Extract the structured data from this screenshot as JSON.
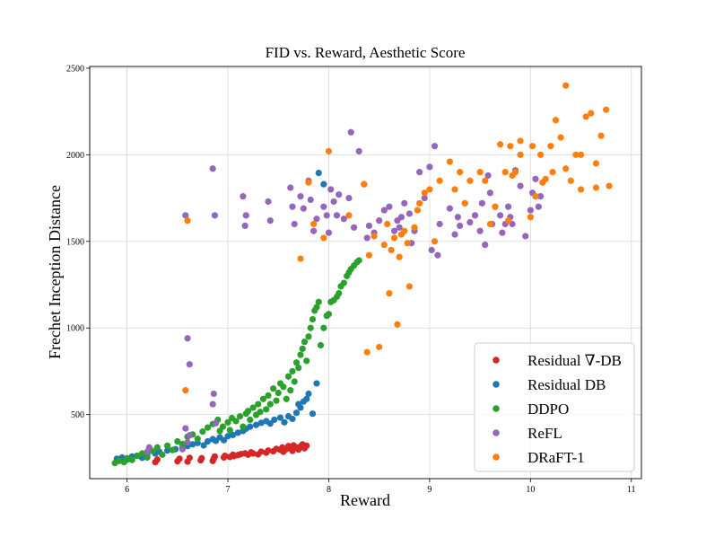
{
  "chart_data": {
    "type": "scatter",
    "title": "FID vs. Reward,  Aesthetic Score",
    "xlabel": "Reward",
    "ylabel": "Frechet Inception Distance",
    "xlim": [
      5.63,
      11.1
    ],
    "ylim": [
      130,
      2510
    ],
    "xticks": [
      6,
      7,
      8,
      9,
      10,
      11
    ],
    "yticks": [
      500,
      1000,
      1500,
      2000,
      2500
    ],
    "grid": true,
    "legend_position": "bottom-right",
    "series": [
      {
        "name": "Residual ∇-DB",
        "color": "#d62728",
        "x": [
          6.28,
          6.3,
          6.5,
          6.52,
          6.6,
          6.62,
          6.73,
          6.74,
          6.85,
          6.86,
          6.87,
          6.96,
          6.97,
          7.02,
          7.05,
          7.06,
          7.1,
          7.13,
          7.17,
          7.2,
          7.23,
          7.25,
          7.3,
          7.33,
          7.38,
          7.4,
          7.45,
          7.48,
          7.52,
          7.54,
          7.55,
          7.58,
          7.6,
          7.62,
          7.64,
          7.65,
          7.67,
          7.7,
          7.72,
          7.74,
          7.76,
          7.78
        ],
        "y": [
          225,
          240,
          230,
          245,
          228,
          250,
          236,
          248,
          232,
          246,
          258,
          252,
          262,
          255,
          268,
          260,
          266,
          272,
          276,
          268,
          282,
          275,
          270,
          286,
          280,
          292,
          288,
          302,
          296,
          310,
          285,
          300,
          318,
          305,
          290,
          322,
          312,
          298,
          315,
          328,
          305,
          320
        ]
      },
      {
        "name": "Residual DB",
        "color": "#1f77b4",
        "x": [
          5.9,
          5.95,
          6.0,
          6.05,
          6.1,
          6.15,
          6.2,
          6.28,
          6.32,
          6.4,
          6.48,
          6.55,
          6.6,
          6.65,
          6.7,
          6.76,
          6.8,
          6.85,
          6.88,
          6.92,
          6.96,
          7.0,
          7.05,
          7.1,
          7.15,
          7.18,
          7.22,
          7.28,
          7.33,
          7.38,
          7.42,
          7.46,
          7.52,
          7.56,
          7.6,
          7.64,
          7.68,
          7.7,
          7.72,
          7.75,
          7.78,
          7.8,
          7.84,
          7.88,
          7.9,
          7.95
        ],
        "y": [
          245,
          252,
          240,
          258,
          262,
          250,
          268,
          275,
          285,
          292,
          300,
          310,
          318,
          328,
          336,
          322,
          345,
          358,
          348,
          368,
          352,
          375,
          382,
          395,
          405,
          418,
          430,
          440,
          452,
          462,
          448,
          470,
          482,
          455,
          490,
          475,
          510,
          560,
          540,
          575,
          590,
          620,
          505,
          680,
          1895,
          1830
        ]
      },
      {
        "name": "DDPO",
        "color": "#2ca02c",
        "x": [
          5.88,
          5.92,
          5.97,
          6.0,
          6.05,
          6.1,
          6.15,
          6.2,
          6.25,
          6.3,
          6.35,
          6.4,
          6.45,
          6.5,
          6.55,
          6.6,
          6.65,
          6.7,
          6.75,
          6.8,
          6.85,
          6.9,
          6.92,
          6.95,
          7.0,
          7.02,
          7.04,
          7.08,
          7.12,
          7.15,
          7.18,
          7.2,
          7.22,
          7.25,
          7.28,
          7.3,
          7.32,
          7.35,
          7.38,
          7.4,
          7.42,
          7.45,
          7.48,
          7.5,
          7.52,
          7.55,
          7.58,
          7.6,
          7.62,
          7.64,
          7.66,
          7.68,
          7.7,
          7.72,
          7.74,
          7.76,
          7.78,
          7.8,
          7.82,
          7.84,
          7.86,
          7.88,
          7.9,
          7.92,
          7.95,
          7.98,
          8.0,
          8.02,
          8.05,
          8.08,
          8.1,
          8.12,
          8.15,
          8.18,
          8.2,
          8.22,
          8.25,
          8.28,
          8.3
        ],
        "y": [
          220,
          232,
          225,
          248,
          238,
          262,
          275,
          252,
          290,
          310,
          268,
          320,
          295,
          345,
          330,
          372,
          385,
          360,
          402,
          425,
          445,
          470,
          405,
          430,
          455,
          410,
          480,
          462,
          490,
          430,
          505,
          520,
          470,
          540,
          498,
          560,
          515,
          590,
          530,
          610,
          560,
          650,
          580,
          625,
          680,
          660,
          590,
          720,
          640,
          750,
          690,
          800,
          770,
          845,
          880,
          920,
          810,
          950,
          1000,
          1050,
          1100,
          1120,
          1150,
          900,
          1000,
          1070,
          1080,
          1150,
          1160,
          1180,
          1200,
          1240,
          1260,
          1300,
          1320,
          1340,
          1360,
          1380,
          1390
        ]
      },
      {
        "name": "ReFL",
        "color": "#9467bd",
        "x": [
          6.2,
          6.22,
          6.55,
          6.6,
          6.62,
          6.58,
          6.85,
          6.86,
          6.88,
          7.15,
          7.18,
          7.17,
          7.4,
          7.42,
          7.62,
          7.64,
          7.66,
          7.72,
          7.75,
          7.8,
          7.82,
          7.85,
          7.88,
          7.95,
          7.98,
          8.0,
          8.02,
          8.05,
          8.08,
          8.1,
          8.15,
          8.2,
          8.22,
          8.25,
          8.3,
          8.35,
          8.38,
          8.4,
          8.45,
          8.5,
          8.55,
          8.6,
          8.65,
          8.68,
          8.7,
          8.72,
          8.75,
          8.8,
          8.82,
          8.85,
          8.9,
          8.95,
          9.0,
          9.02,
          9.05,
          9.08,
          9.1,
          9.2,
          9.25,
          9.28,
          9.3,
          9.35,
          9.4,
          9.45,
          9.5,
          9.52,
          9.55,
          9.58,
          9.6,
          9.62,
          9.65,
          9.7,
          9.72,
          9.75,
          9.78,
          9.8,
          9.82,
          9.85,
          9.9,
          9.95,
          10.0,
          10.02,
          10.05,
          10.08,
          10.1,
          6.58,
          6.6,
          6.62,
          6.85,
          6.87
        ],
        "y": [
          285,
          310,
          300,
          340,
          380,
          420,
          560,
          620,
          450,
          1760,
          1650,
          1590,
          1730,
          1620,
          1810,
          1700,
          1600,
          1760,
          1690,
          1850,
          1740,
          1560,
          1630,
          1700,
          1650,
          1550,
          1800,
          1730,
          1650,
          1770,
          1630,
          1750,
          2130,
          1580,
          2020,
          1830,
          1520,
          1590,
          1550,
          1620,
          1680,
          1700,
          1560,
          1620,
          1580,
          1640,
          1720,
          1660,
          1490,
          1560,
          1900,
          1750,
          1930,
          1450,
          2050,
          1420,
          1600,
          1690,
          1540,
          1640,
          1590,
          1720,
          1610,
          1650,
          1560,
          1720,
          1480,
          1880,
          1780,
          1600,
          1700,
          1650,
          1550,
          1600,
          1700,
          1640,
          1600,
          1910,
          1820,
          1530,
          1680,
          1780,
          1860,
          1700,
          1760,
          1650,
          940,
          790,
          1920,
          1650
        ]
      },
      {
        "name": "DRaFT-1",
        "color": "#ff7f0e",
        "x": [
          6.58,
          6.6,
          7.72,
          7.8,
          7.85,
          7.95,
          8.0,
          8.2,
          8.35,
          8.38,
          8.4,
          8.45,
          8.5,
          8.55,
          8.58,
          8.6,
          8.62,
          8.65,
          8.68,
          8.7,
          8.72,
          8.75,
          8.78,
          8.8,
          8.85,
          8.88,
          8.9,
          8.95,
          9.0,
          9.05,
          9.1,
          9.2,
          9.25,
          9.3,
          9.35,
          9.4,
          9.5,
          9.55,
          9.6,
          9.65,
          9.7,
          9.75,
          9.8,
          9.85,
          9.9,
          10.0,
          10.05,
          10.1,
          10.15,
          10.2,
          10.25,
          10.3,
          10.35,
          10.4,
          10.45,
          10.5,
          10.55,
          10.6,
          10.65,
          10.7,
          10.75,
          10.78,
          10.02,
          9.78,
          9.82,
          9.9,
          10.12,
          10.22,
          10.35,
          10.5,
          10.65
        ],
        "y": [
          640,
          1620,
          1400,
          1840,
          1600,
          1520,
          2020,
          1650,
          1830,
          860,
          1420,
          1530,
          890,
          1480,
          1600,
          1200,
          1450,
          1520,
          1020,
          1410,
          1540,
          1560,
          1490,
          1240,
          1580,
          1680,
          1720,
          1780,
          1800,
          1500,
          1850,
          1960,
          1800,
          1900,
          1720,
          1850,
          1900,
          1850,
          1600,
          1700,
          2060,
          1900,
          2050,
          1900,
          2000,
          1640,
          1760,
          2000,
          1860,
          2050,
          2200,
          2100,
          2400,
          1850,
          2000,
          1800,
          2220,
          2240,
          1950,
          2110,
          2260,
          1820,
          2050,
          1620,
          1880,
          2080,
          1840,
          1900,
          1920,
          2000,
          1810
        ]
      }
    ]
  }
}
